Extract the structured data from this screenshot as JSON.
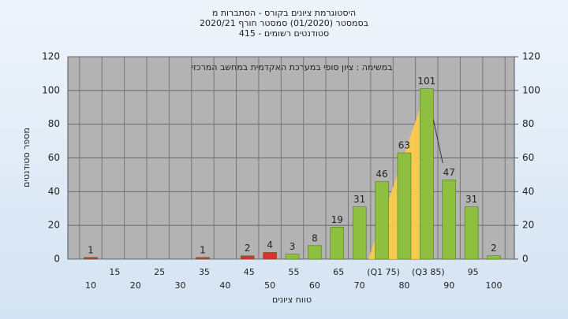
{
  "chart_data": {
    "type": "bar",
    "title": "היסטוגרמת ציונים בקורס - הסתברות מ",
    "subtitle": "בסמסטר  (01/2020)  סמסטר חורף  2020/21",
    "subtitle2": "סטודנטים רשומים - 415",
    "annotation": "במשימה : ציון סופי במערכת האקדמית במחשב המרכזי",
    "x_label": "טווח ציונים",
    "y_label": "מספר סטודנטים",
    "categories": [
      "10",
      "15",
      "20",
      "25",
      "30",
      "35",
      "40",
      "45",
      "50",
      "55",
      "60",
      "65",
      "70",
      "(Q1 75)",
      "80",
      "(Q3 85)",
      "90",
      "95",
      "100"
    ],
    "values": [
      1,
      0,
      0,
      0,
      0,
      1,
      0,
      2,
      4,
      3,
      8,
      19,
      31,
      46,
      63,
      101,
      47,
      31,
      2
    ],
    "colors": [
      "#d83030",
      "#d83030",
      "#d83030",
      "#d83030",
      "#d83030",
      "#d83030",
      "#d83030",
      "#d83030",
      "#d83030",
      "#8fbf3f",
      "#8fbf3f",
      "#8fbf3f",
      "#8fbf3f",
      "#8fbf3f",
      "#8fbf3f",
      "#8fbf3f",
      "#8fbf3f",
      "#8fbf3f",
      "#8fbf3f"
    ],
    "ylim": [
      0,
      120
    ],
    "yticks": [
      0,
      20,
      40,
      60,
      80,
      100,
      120
    ],
    "y2lim": [
      0,
      120
    ],
    "y2ticks": [
      0,
      20,
      40,
      60,
      80,
      100,
      120
    ],
    "grid": true
  }
}
